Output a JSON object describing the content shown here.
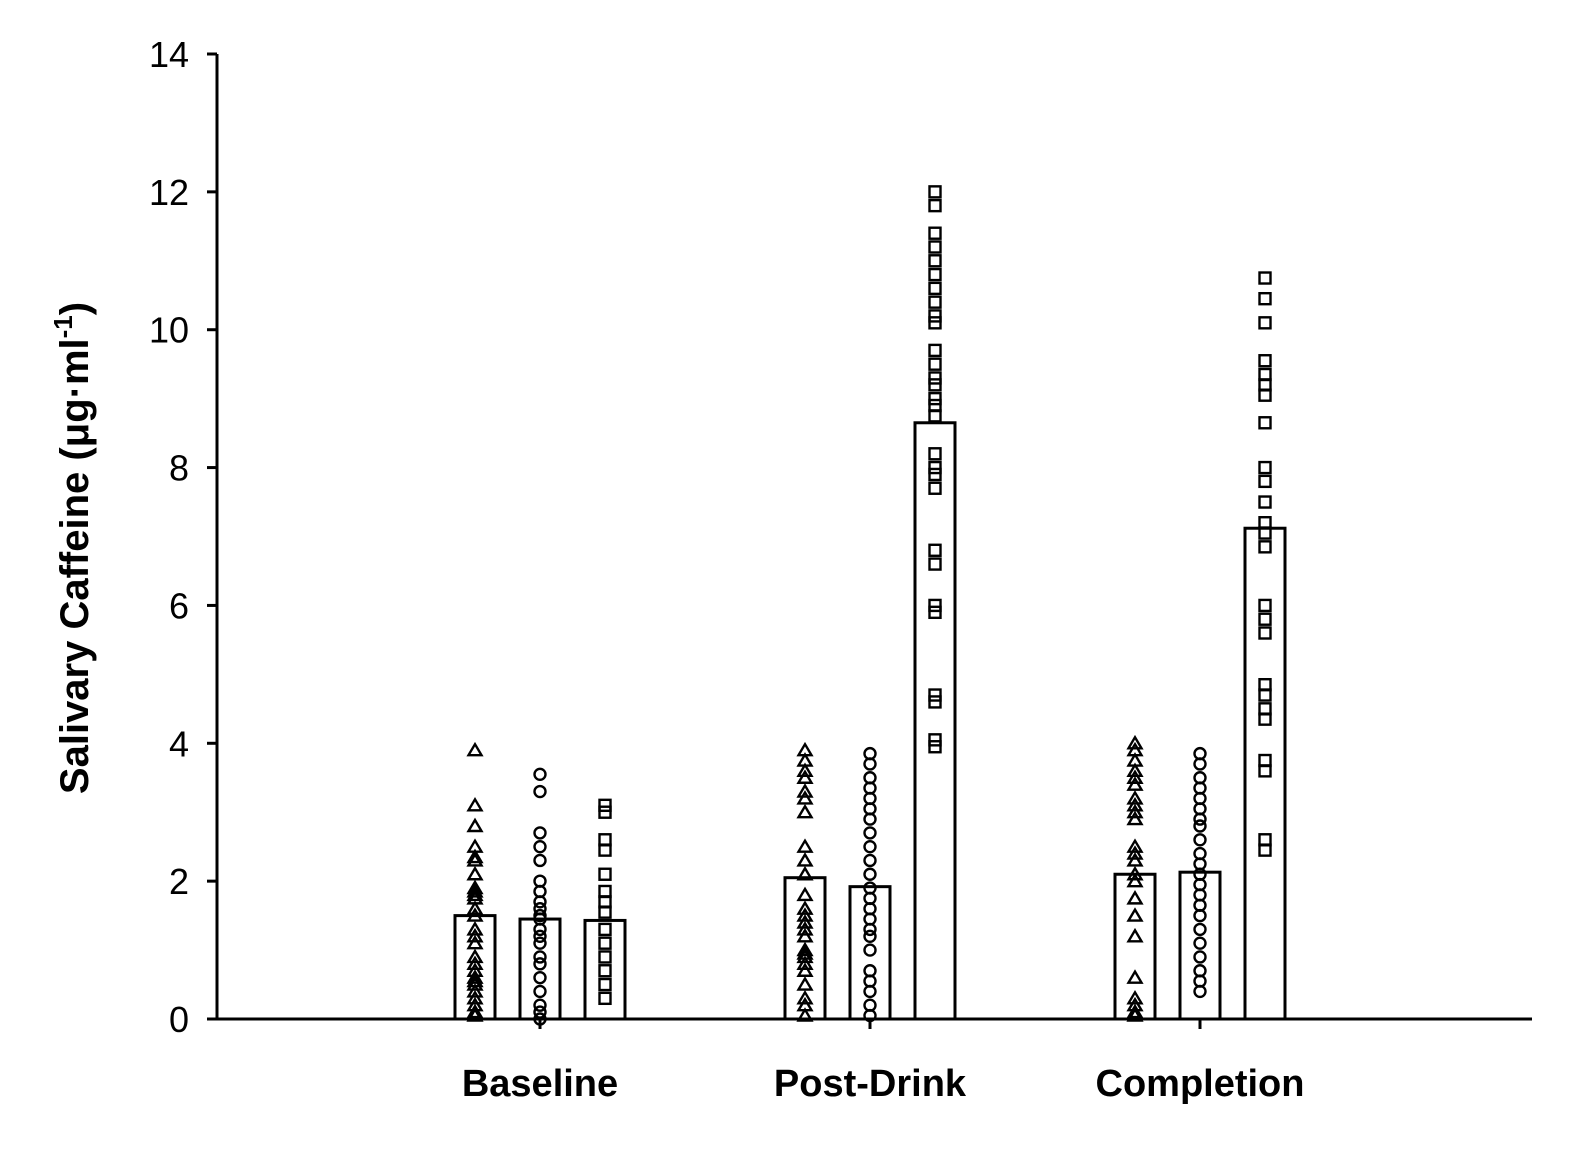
{
  "chart_data": {
    "type": "bar",
    "ylabel": "Salivary Caffeine (μg·ml",
    "ylabel_sup": "-1",
    "ylabel_tail": ")",
    "xlabel": "",
    "ylim": [
      0,
      14
    ],
    "yticks": [
      "0",
      "2",
      "4",
      "6",
      "8",
      "10",
      "12",
      "14"
    ],
    "categories": [
      "Baseline",
      "Post-Drink",
      "Completion"
    ],
    "grid": false,
    "legend": "none",
    "series": [
      {
        "marker": "triangle",
        "values": [
          1.5,
          2.05,
          2.1
        ],
        "points": [
          [
            3.9,
            3.1,
            2.8,
            2.5,
            2.35,
            2.3,
            2.1,
            1.9,
            1.85,
            1.8,
            1.75,
            1.6,
            1.5,
            1.3,
            1.2,
            1.1,
            0.9,
            0.8,
            0.7,
            0.6,
            0.55,
            0.5,
            0.4,
            0.3,
            0.2,
            0.1,
            0.05
          ],
          [
            3.9,
            3.75,
            3.6,
            3.5,
            3.3,
            3.2,
            3.0,
            2.5,
            2.3,
            2.1,
            1.8,
            1.6,
            1.5,
            1.4,
            1.3,
            1.2,
            1.0,
            0.95,
            0.9,
            0.8,
            0.7,
            0.5,
            0.3,
            0.2,
            0.05
          ],
          [
            4.0,
            3.9,
            3.75,
            3.6,
            3.5,
            3.4,
            3.2,
            3.1,
            3.0,
            2.9,
            2.5,
            2.4,
            2.3,
            2.1,
            2.0,
            1.75,
            1.5,
            1.2,
            0.6,
            0.3,
            0.2,
            0.1,
            0.05
          ]
        ]
      },
      {
        "marker": "circle",
        "values": [
          1.45,
          1.92,
          2.13
        ],
        "points": [
          [
            3.55,
            3.3,
            2.7,
            2.5,
            2.3,
            2.0,
            1.85,
            1.7,
            1.6,
            1.5,
            1.45,
            1.3,
            1.2,
            1.1,
            0.9,
            0.8,
            0.6,
            0.4,
            0.2,
            0.1,
            0.0
          ],
          [
            3.85,
            3.7,
            3.5,
            3.35,
            3.2,
            3.05,
            2.9,
            2.7,
            2.5,
            2.3,
            2.1,
            1.9,
            1.75,
            1.6,
            1.45,
            1.3,
            1.2,
            1.0,
            0.7,
            0.55,
            0.4,
            0.2,
            0.05
          ],
          [
            3.85,
            3.7,
            3.5,
            3.35,
            3.2,
            3.05,
            2.9,
            2.8,
            2.6,
            2.4,
            2.25,
            2.1,
            1.95,
            1.8,
            1.65,
            1.5,
            1.3,
            1.1,
            0.9,
            0.7,
            0.55,
            0.4
          ]
        ]
      },
      {
        "marker": "square",
        "values": [
          1.43,
          8.65,
          7.12
        ],
        "points": [
          [
            3.1,
            3.0,
            2.6,
            2.45,
            2.1,
            1.85,
            1.7,
            1.55,
            1.3,
            1.1,
            0.9,
            0.7,
            0.5,
            0.3
          ],
          [
            12.0,
            11.8,
            11.4,
            11.2,
            11.0,
            10.8,
            10.6,
            10.4,
            10.2,
            10.1,
            9.7,
            9.5,
            9.3,
            9.2,
            9.0,
            8.9,
            8.75,
            8.2,
            8.0,
            7.9,
            7.7,
            6.8,
            6.6,
            6.0,
            5.9,
            4.7,
            4.6,
            4.05,
            3.95
          ],
          [
            10.75,
            10.45,
            10.1,
            9.55,
            9.35,
            9.2,
            9.05,
            8.65,
            8.0,
            7.8,
            7.5,
            7.2,
            7.05,
            6.85,
            6.0,
            5.8,
            5.6,
            4.85,
            4.7,
            4.5,
            4.35,
            3.75,
            3.6,
            2.6,
            2.45
          ]
        ]
      }
    ]
  }
}
